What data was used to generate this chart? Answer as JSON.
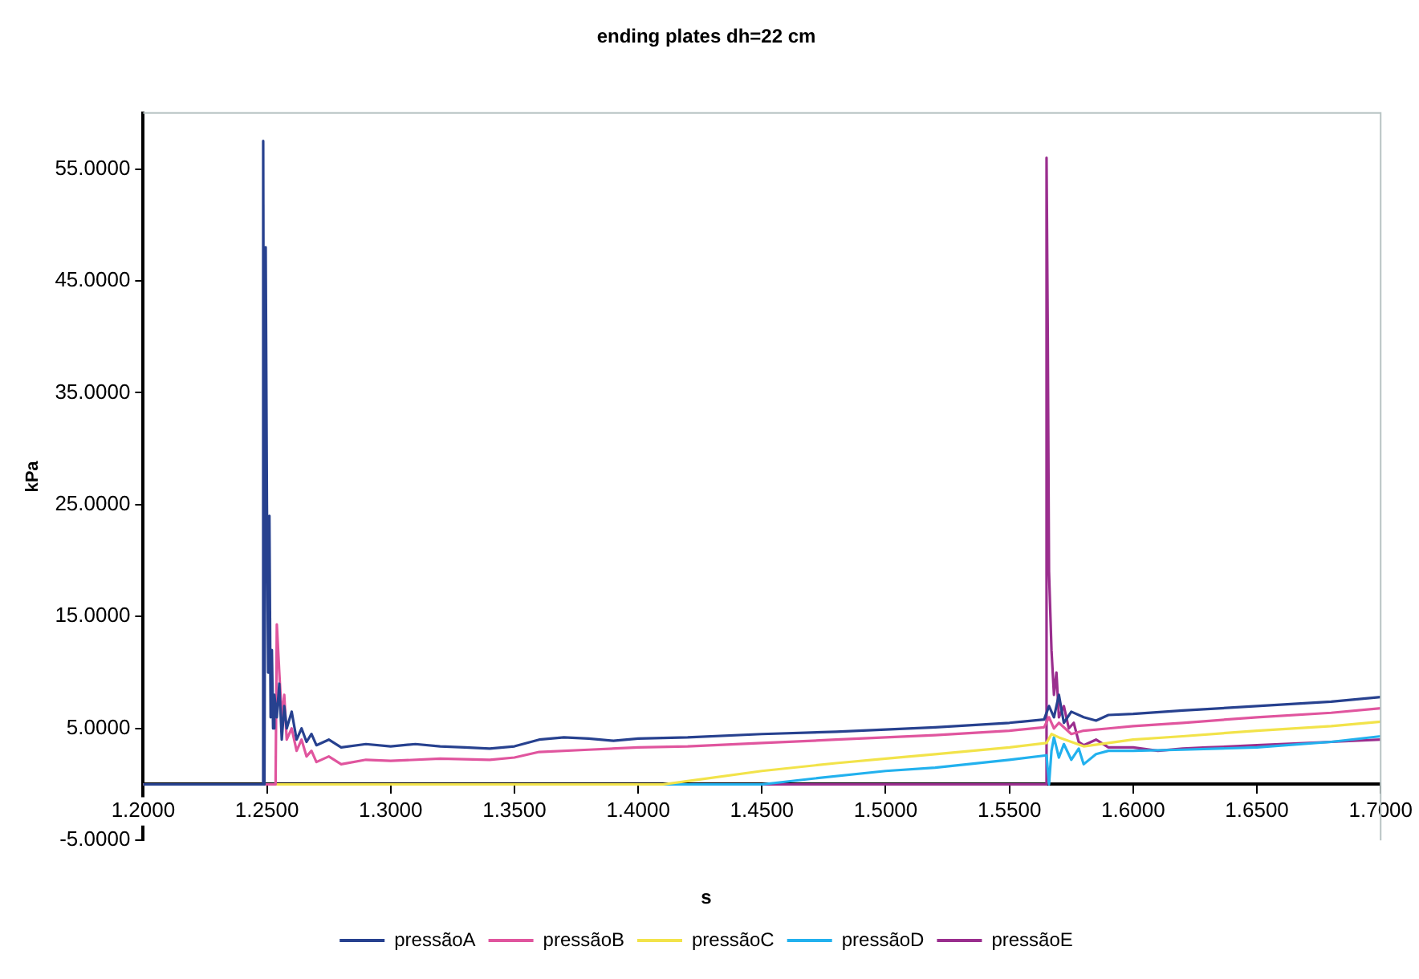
{
  "chart_data": {
    "type": "line",
    "title": "ending plates dh=22 cm",
    "xlabel": "s",
    "ylabel": "kPa",
    "xlim": [
      1.2,
      1.7
    ],
    "xticks": [
      {
        "value": 1.2,
        "label": "1.2000"
      },
      {
        "value": 1.25,
        "label": "1.2500"
      },
      {
        "value": 1.3,
        "label": "1.3000"
      },
      {
        "value": 1.35,
        "label": "1.3500"
      },
      {
        "value": 1.4,
        "label": "1.4000"
      },
      {
        "value": 1.45,
        "label": "1.4500"
      },
      {
        "value": 1.5,
        "label": "1.5000"
      },
      {
        "value": 1.55,
        "label": "1.5500"
      },
      {
        "value": 1.6,
        "label": "1.6000"
      },
      {
        "value": 1.65,
        "label": "1.6500"
      },
      {
        "value": 1.7,
        "label": "1.7000"
      }
    ],
    "ylim": [
      -5,
      60
    ],
    "yticks": [
      {
        "value": -5,
        "label": "-5.0000"
      },
      {
        "value": 5,
        "label": "5.0000"
      },
      {
        "value": 15,
        "label": "15.0000"
      },
      {
        "value": 25,
        "label": "25.0000"
      },
      {
        "value": 35,
        "label": "35.0000"
      },
      {
        "value": 45,
        "label": "45.0000"
      },
      {
        "value": 55,
        "label": "55.0000"
      }
    ],
    "grid": false,
    "legend": "bottom",
    "marker": "none",
    "line_style": "solid",
    "series": [
      {
        "name": "pressãoA",
        "color": "#27418f",
        "x": [
          1.2,
          1.247,
          1.248,
          1.2485,
          1.249,
          1.2495,
          1.25,
          1.2505,
          1.251,
          1.2515,
          1.252,
          1.2525,
          1.253,
          1.254,
          1.255,
          1.256,
          1.257,
          1.258,
          1.26,
          1.262,
          1.264,
          1.266,
          1.268,
          1.27,
          1.275,
          1.28,
          1.29,
          1.3,
          1.31,
          1.32,
          1.33,
          1.34,
          1.35,
          1.36,
          1.37,
          1.38,
          1.39,
          1.4,
          1.42,
          1.45,
          1.48,
          1.5,
          1.52,
          1.55,
          1.564,
          1.566,
          1.568,
          1.57,
          1.572,
          1.575,
          1.58,
          1.585,
          1.59,
          1.6,
          1.62,
          1.65,
          1.68,
          1.7
        ],
        "values": [
          0,
          0,
          0,
          57.5,
          0,
          48,
          25,
          10,
          24,
          6,
          12,
          5,
          8,
          6,
          9,
          4,
          7,
          5,
          6.5,
          4,
          5,
          3.8,
          4.5,
          3.5,
          4,
          3.3,
          3.6,
          3.4,
          3.6,
          3.4,
          3.3,
          3.2,
          3.4,
          4,
          4.2,
          4.1,
          3.9,
          4.1,
          4.2,
          4.5,
          4.7,
          4.9,
          5.1,
          5.5,
          5.8,
          7,
          6,
          8,
          5.5,
          6.5,
          6,
          5.7,
          6.2,
          6.3,
          6.6,
          7,
          7.4,
          7.8
        ]
      },
      {
        "name": "pressãoB",
        "color": "#e0559e",
        "x": [
          1.2,
          1.253,
          1.2535,
          1.254,
          1.255,
          1.256,
          1.257,
          1.258,
          1.26,
          1.262,
          1.264,
          1.266,
          1.268,
          1.27,
          1.275,
          1.28,
          1.29,
          1.3,
          1.32,
          1.34,
          1.35,
          1.36,
          1.38,
          1.4,
          1.42,
          1.45,
          1.48,
          1.5,
          1.52,
          1.55,
          1.564,
          1.566,
          1.568,
          1.57,
          1.575,
          1.58,
          1.59,
          1.6,
          1.62,
          1.65,
          1.68,
          1.7
        ],
        "values": [
          0,
          0,
          0,
          14.3,
          10,
          6,
          8,
          4,
          5,
          3,
          4,
          2.5,
          3,
          2,
          2.5,
          1.8,
          2.2,
          2.1,
          2.3,
          2.2,
          2.4,
          2.9,
          3.1,
          3.3,
          3.4,
          3.7,
          4,
          4.2,
          4.4,
          4.8,
          5.1,
          6,
          5,
          5.5,
          4.5,
          4.8,
          5,
          5.2,
          5.5,
          6,
          6.4,
          6.8
        ]
      },
      {
        "name": "pressãoC",
        "color": "#f2e34a",
        "x": [
          1.2,
          1.3,
          1.4,
          1.41,
          1.42,
          1.45,
          1.48,
          1.5,
          1.52,
          1.55,
          1.565,
          1.567,
          1.57,
          1.575,
          1.58,
          1.59,
          1.6,
          1.62,
          1.65,
          1.68,
          1.7
        ],
        "values": [
          0,
          0,
          0,
          0,
          0.3,
          1.2,
          1.9,
          2.3,
          2.7,
          3.3,
          3.7,
          4.5,
          4.2,
          3.8,
          3.4,
          3.7,
          4,
          4.3,
          4.8,
          5.2,
          5.6
        ]
      },
      {
        "name": "pressãoD",
        "color": "#22b1ee",
        "x": [
          1.2,
          1.4,
          1.45,
          1.47,
          1.5,
          1.52,
          1.55,
          1.565,
          1.566,
          1.567,
          1.568,
          1.57,
          1.572,
          1.575,
          1.578,
          1.58,
          1.585,
          1.59,
          1.6,
          1.62,
          1.65,
          1.68,
          1.7
        ],
        "values": [
          0,
          0,
          0,
          0.5,
          1.2,
          1.5,
          2.2,
          2.6,
          0,
          3,
          4.2,
          2.4,
          3.6,
          2.2,
          3.2,
          1.8,
          2.7,
          3,
          3,
          3.1,
          3.3,
          3.8,
          4.3
        ]
      },
      {
        "name": "pressãoE",
        "color": "#9a2e8e",
        "x": [
          1.2,
          1.564,
          1.5645,
          1.565,
          1.5655,
          1.566,
          1.567,
          1.568,
          1.569,
          1.57,
          1.572,
          1.574,
          1.576,
          1.578,
          1.58,
          1.585,
          1.59,
          1.6,
          1.61,
          1.62,
          1.63,
          1.65,
          1.68,
          1.7
        ],
        "values": [
          0,
          0,
          0,
          56,
          40,
          19,
          12,
          8,
          10,
          6,
          7,
          5,
          5.5,
          3.8,
          3.5,
          4,
          3.3,
          3.3,
          3,
          3.2,
          3.3,
          3.5,
          3.8,
          4
        ]
      }
    ]
  }
}
